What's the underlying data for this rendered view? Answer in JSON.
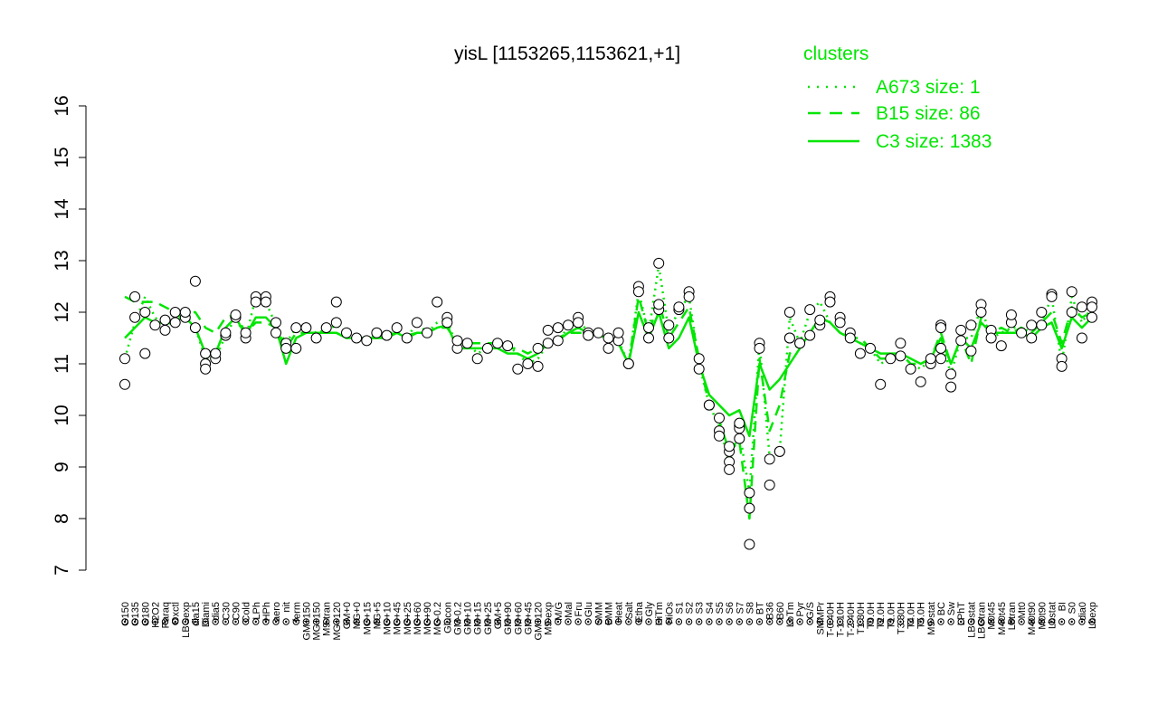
{
  "chart_data": {
    "type": "line",
    "title": "yisL [1153265,1153621,+1]",
    "xlabel": "",
    "ylabel": "",
    "ylim": [
      7,
      16
    ],
    "yticks": [
      7,
      8,
      9,
      10,
      11,
      12,
      13,
      14,
      15,
      16
    ],
    "grid": false,
    "legend_title": "clusters",
    "legend_position": "top-right",
    "legend": [
      {
        "label": "A673 size: 1",
        "style": "dotted"
      },
      {
        "label": "B15 size: 86",
        "style": "dashed"
      },
      {
        "label": "C3 size: 1383",
        "style": "solid"
      }
    ],
    "line_color": "#00e600",
    "tick_labels": [
      "G150",
      "G135",
      "G180",
      "H2O2",
      "Paraq",
      "Oxctl",
      "LBGexp",
      "dia15",
      "Diami",
      "dia5",
      "C30",
      "C90",
      "Cold",
      "LPh",
      "HPh",
      "aero",
      "nit",
      "ferm",
      "GM+150",
      "MG+150",
      "M9-tran",
      "MG+120",
      "GM+0",
      "MG+0",
      "MG+15",
      "MG+5",
      "MG+10",
      "MG+45",
      "MG+25",
      "MG+60",
      "MG+90",
      "MG-0.2",
      "Glucon",
      "GM-0.2",
      "GM+10",
      "GM+15",
      "GM+25",
      "GM+5",
      "GM+90",
      "GM+60",
      "GM+45",
      "GM+120",
      "M9-exp",
      "M/G",
      "Mal",
      "Fru",
      "Glu",
      "SMM",
      "BMM",
      "Heat",
      "Salt",
      "Etha",
      "Gly",
      "HiTm",
      "HiOs",
      "S1",
      "S2",
      "S3",
      "S4",
      "S5",
      "S6",
      "S7",
      "S8",
      "BT",
      "B36",
      "B60",
      "LoTm",
      "Pyr",
      "G/S",
      "SMMPr",
      "T-0.40H",
      "T-1.10H",
      "T-2.40H",
      "T1.30H",
      "T0.0H",
      "T2.0H",
      "T1.0H",
      "T3.30H",
      "T4.0H",
      "T5.0H",
      "M9-stat",
      "BC",
      "Sw",
      "LPhT",
      "LBGstat",
      "LBGtran",
      "M0t45",
      "M40t45",
      "Lbtran",
      "Mt0",
      "M40t90",
      "M0t90",
      "Lbstat",
      "BI",
      "S0",
      "dia0",
      "Lbexp"
    ],
    "series": [
      {
        "values": [
          11.1,
          11.8,
          12.3,
          11.9,
          11.7,
          11.9,
          11.95,
          11.7,
          11.1,
          11.1,
          11.55,
          11.9,
          11.5,
          12.3,
          12.2,
          11.75,
          11.4,
          11.7,
          11.7,
          11.6,
          11.65,
          11.75,
          11.6,
          11.5,
          11.5,
          11.55,
          11.6,
          11.6,
          11.5,
          11.8,
          11.6,
          11.8,
          11.85,
          11.3,
          11.4,
          11.2,
          11.3,
          11.4,
          11.35,
          11.2,
          11.0,
          11.1,
          11.4,
          11.45,
          11.7,
          11.8,
          11.65,
          11.6,
          11.5,
          11.45,
          11.0,
          12.4,
          11.6,
          12.9,
          11.6,
          12.05,
          12.3,
          11.0,
          10.2,
          9.8,
          9.1,
          9.7,
          8.5,
          11.4,
          9.2,
          9.3,
          11.9,
          11.4,
          12.0,
          12.2,
          11.8,
          11.6,
          11.5,
          11.4,
          11.3,
          11.0,
          11.1,
          11.2,
          11.0,
          10.9,
          11.1,
          11.5,
          10.8,
          11.5,
          11.5,
          12.1,
          11.5,
          11.6,
          11.7,
          11.7,
          11.6,
          11.8,
          12.3,
          11.0,
          12.3,
          11.8,
          12.1
        ]
      },
      {
        "values": [
          12.3,
          12.2,
          12.2,
          12.2,
          12.1,
          12.0,
          12.0,
          12.0,
          11.7,
          11.6,
          11.9,
          11.95,
          11.6,
          11.8,
          11.8,
          11.7,
          11.3,
          11.6,
          11.6,
          11.6,
          11.6,
          11.6,
          11.5,
          11.5,
          11.5,
          11.5,
          11.55,
          11.6,
          11.55,
          11.6,
          11.6,
          11.7,
          11.7,
          11.4,
          11.4,
          11.4,
          11.4,
          11.4,
          11.3,
          11.3,
          11.2,
          11.3,
          11.4,
          11.5,
          11.6,
          11.6,
          11.6,
          11.55,
          11.5,
          11.4,
          11.0,
          12.3,
          11.6,
          12.2,
          11.5,
          11.8,
          12.1,
          11.1,
          10.2,
          9.9,
          9.3,
          9.5,
          8.0,
          11.1,
          9.7,
          10.2,
          11.2,
          11.4,
          11.6,
          11.9,
          11.8,
          11.6,
          11.5,
          11.5,
          11.3,
          11.1,
          11.1,
          11.2,
          11.0,
          11.0,
          11.1,
          11.6,
          11.0,
          11.5,
          11.0,
          11.9,
          11.6,
          11.7,
          11.6,
          11.7,
          11.6,
          11.8,
          12.0,
          11.4,
          12.1,
          11.9,
          12.0
        ]
      },
      {
        "values": [
          11.5,
          11.7,
          11.9,
          11.8,
          11.8,
          11.85,
          11.9,
          11.7,
          11.2,
          11.2,
          11.7,
          11.9,
          11.55,
          11.9,
          11.9,
          11.7,
          11.0,
          11.5,
          11.6,
          11.6,
          11.6,
          11.6,
          11.5,
          11.5,
          11.5,
          11.5,
          11.5,
          11.6,
          11.5,
          11.6,
          11.6,
          11.7,
          11.75,
          11.3,
          11.3,
          11.3,
          11.3,
          11.3,
          11.2,
          11.2,
          11.1,
          11.2,
          11.4,
          11.45,
          11.6,
          11.7,
          11.6,
          11.55,
          11.5,
          11.4,
          11.0,
          12.0,
          11.5,
          12.0,
          11.3,
          11.5,
          11.9,
          11.0,
          10.4,
          10.2,
          10.0,
          10.1,
          9.6,
          11.0,
          10.5,
          10.7,
          11.0,
          11.3,
          11.6,
          11.9,
          11.8,
          11.6,
          11.5,
          11.4,
          11.3,
          11.2,
          11.2,
          11.2,
          11.1,
          11.0,
          11.1,
          11.5,
          11.0,
          11.5,
          11.3,
          11.8,
          11.6,
          11.6,
          11.6,
          11.6,
          11.5,
          11.7,
          11.8,
          11.3,
          11.9,
          11.7,
          11.9
        ]
      }
    ],
    "points": [
      {
        "i": 0,
        "y": 11.1
      },
      {
        "i": 0,
        "y": 10.6
      },
      {
        "i": 1,
        "y": 11.9
      },
      {
        "i": 1,
        "y": 12.3
      },
      {
        "i": 2,
        "y": 12.0
      },
      {
        "i": 2,
        "y": 11.2
      },
      {
        "i": 3,
        "y": 11.75
      },
      {
        "i": 4,
        "y": 11.65
      },
      {
        "i": 4,
        "y": 11.85
      },
      {
        "i": 5,
        "y": 12.0
      },
      {
        "i": 5,
        "y": 11.8
      },
      {
        "i": 6,
        "y": 11.9
      },
      {
        "i": 6,
        "y": 12.0
      },
      {
        "i": 7,
        "y": 12.6
      },
      {
        "i": 7,
        "y": 11.7
      },
      {
        "i": 8,
        "y": 11.2
      },
      {
        "i": 8,
        "y": 11.0
      },
      {
        "i": 8,
        "y": 10.9
      },
      {
        "i": 9,
        "y": 11.1
      },
      {
        "i": 9,
        "y": 11.2
      },
      {
        "i": 10,
        "y": 11.55
      },
      {
        "i": 10,
        "y": 11.6
      },
      {
        "i": 11,
        "y": 11.9
      },
      {
        "i": 11,
        "y": 11.95
      },
      {
        "i": 12,
        "y": 11.5
      },
      {
        "i": 12,
        "y": 11.6
      },
      {
        "i": 13,
        "y": 12.3
      },
      {
        "i": 13,
        "y": 12.2
      },
      {
        "i": 14,
        "y": 12.3
      },
      {
        "i": 14,
        "y": 12.2
      },
      {
        "i": 15,
        "y": 11.8
      },
      {
        "i": 15,
        "y": 11.6
      },
      {
        "i": 16,
        "y": 11.4
      },
      {
        "i": 16,
        "y": 11.3
      },
      {
        "i": 17,
        "y": 11.7
      },
      {
        "i": 17,
        "y": 11.3
      },
      {
        "i": 18,
        "y": 11.7
      },
      {
        "i": 19,
        "y": 11.5
      },
      {
        "i": 20,
        "y": 11.7
      },
      {
        "i": 21,
        "y": 12.2
      },
      {
        "i": 21,
        "y": 11.8
      },
      {
        "i": 22,
        "y": 11.6
      },
      {
        "i": 23,
        "y": 11.5
      },
      {
        "i": 24,
        "y": 11.45
      },
      {
        "i": 25,
        "y": 11.6
      },
      {
        "i": 26,
        "y": 11.55
      },
      {
        "i": 27,
        "y": 11.7
      },
      {
        "i": 28,
        "y": 11.5
      },
      {
        "i": 29,
        "y": 11.8
      },
      {
        "i": 30,
        "y": 11.6
      },
      {
        "i": 31,
        "y": 12.2
      },
      {
        "i": 32,
        "y": 11.9
      },
      {
        "i": 32,
        "y": 11.8
      },
      {
        "i": 33,
        "y": 11.3
      },
      {
        "i": 33,
        "y": 11.45
      },
      {
        "i": 34,
        "y": 11.4
      },
      {
        "i": 35,
        "y": 11.1
      },
      {
        "i": 36,
        "y": 11.3
      },
      {
        "i": 37,
        "y": 11.4
      },
      {
        "i": 38,
        "y": 11.35
      },
      {
        "i": 39,
        "y": 10.9
      },
      {
        "i": 40,
        "y": 11.0
      },
      {
        "i": 41,
        "y": 10.95
      },
      {
        "i": 41,
        "y": 11.3
      },
      {
        "i": 42,
        "y": 11.4
      },
      {
        "i": 42,
        "y": 11.65
      },
      {
        "i": 43,
        "y": 11.45
      },
      {
        "i": 43,
        "y": 11.7
      },
      {
        "i": 44,
        "y": 11.75
      },
      {
        "i": 45,
        "y": 11.9
      },
      {
        "i": 45,
        "y": 11.8
      },
      {
        "i": 46,
        "y": 11.6
      },
      {
        "i": 46,
        "y": 11.55
      },
      {
        "i": 47,
        "y": 11.6
      },
      {
        "i": 48,
        "y": 11.3
      },
      {
        "i": 48,
        "y": 11.5
      },
      {
        "i": 49,
        "y": 11.45
      },
      {
        "i": 49,
        "y": 11.6
      },
      {
        "i": 50,
        "y": 11.0
      },
      {
        "i": 50,
        "y": 11.0
      },
      {
        "i": 51,
        "y": 12.5
      },
      {
        "i": 51,
        "y": 12.4
      },
      {
        "i": 52,
        "y": 11.7
      },
      {
        "i": 52,
        "y": 11.5
      },
      {
        "i": 53,
        "y": 12.95
      },
      {
        "i": 53,
        "y": 12.05
      },
      {
        "i": 53,
        "y": 12.15
      },
      {
        "i": 54,
        "y": 11.75
      },
      {
        "i": 54,
        "y": 11.5
      },
      {
        "i": 55,
        "y": 12.05
      },
      {
        "i": 55,
        "y": 12.1
      },
      {
        "i": 56,
        "y": 12.4
      },
      {
        "i": 56,
        "y": 12.3
      },
      {
        "i": 57,
        "y": 11.1
      },
      {
        "i": 57,
        "y": 10.9
      },
      {
        "i": 58,
        "y": 10.2
      },
      {
        "i": 58,
        "y": 10.2
      },
      {
        "i": 59,
        "y": 9.95
      },
      {
        "i": 59,
        "y": 9.7
      },
      {
        "i": 59,
        "y": 9.6
      },
      {
        "i": 60,
        "y": 9.1
      },
      {
        "i": 60,
        "y": 8.95
      },
      {
        "i": 60,
        "y": 9.3
      },
      {
        "i": 60,
        "y": 9.4
      },
      {
        "i": 61,
        "y": 9.8
      },
      {
        "i": 61,
        "y": 9.55
      },
      {
        "i": 61,
        "y": 9.75
      },
      {
        "i": 61,
        "y": 9.85
      },
      {
        "i": 62,
        "y": 8.5
      },
      {
        "i": 62,
        "y": 8.2
      },
      {
        "i": 62,
        "y": 7.5
      },
      {
        "i": 63,
        "y": 11.4
      },
      {
        "i": 63,
        "y": 11.3
      },
      {
        "i": 64,
        "y": 9.15
      },
      {
        "i": 64,
        "y": 8.65
      },
      {
        "i": 65,
        "y": 9.3
      },
      {
        "i": 65,
        "y": 9.3
      },
      {
        "i": 66,
        "y": 12.0
      },
      {
        "i": 66,
        "y": 11.5
      },
      {
        "i": 66,
        "y": 11.5
      },
      {
        "i": 67,
        "y": 11.4
      },
      {
        "i": 67,
        "y": 11.4
      },
      {
        "i": 68,
        "y": 11.55
      },
      {
        "i": 68,
        "y": 12.05
      },
      {
        "i": 69,
        "y": 11.75
      },
      {
        "i": 69,
        "y": 11.85
      },
      {
        "i": 70,
        "y": 12.3
      },
      {
        "i": 70,
        "y": 12.2
      },
      {
        "i": 71,
        "y": 11.9
      },
      {
        "i": 71,
        "y": 11.8
      },
      {
        "i": 72,
        "y": 11.6
      },
      {
        "i": 72,
        "y": 11.5
      },
      {
        "i": 73,
        "y": 11.2
      },
      {
        "i": 74,
        "y": 11.3
      },
      {
        "i": 75,
        "y": 10.6
      },
      {
        "i": 76,
        "y": 11.1
      },
      {
        "i": 77,
        "y": 11.4
      },
      {
        "i": 77,
        "y": 11.15
      },
      {
        "i": 78,
        "y": 10.9
      },
      {
        "i": 79,
        "y": 10.65
      },
      {
        "i": 80,
        "y": 11.0
      },
      {
        "i": 80,
        "y": 11.1
      },
      {
        "i": 81,
        "y": 11.75
      },
      {
        "i": 81,
        "y": 11.7
      },
      {
        "i": 81,
        "y": 11.3
      },
      {
        "i": 81,
        "y": 11.1
      },
      {
        "i": 82,
        "y": 10.8
      },
      {
        "i": 82,
        "y": 10.55
      },
      {
        "i": 83,
        "y": 11.45
      },
      {
        "i": 83,
        "y": 11.65
      },
      {
        "i": 84,
        "y": 11.75
      },
      {
        "i": 84,
        "y": 11.25
      },
      {
        "i": 85,
        "y": 12.15
      },
      {
        "i": 85,
        "y": 12.0
      },
      {
        "i": 86,
        "y": 11.65
      },
      {
        "i": 86,
        "y": 11.5
      },
      {
        "i": 87,
        "y": 11.35
      },
      {
        "i": 88,
        "y": 11.8
      },
      {
        "i": 88,
        "y": 11.95
      },
      {
        "i": 89,
        "y": 11.6
      },
      {
        "i": 90,
        "y": 11.75
      },
      {
        "i": 90,
        "y": 11.5
      },
      {
        "i": 91,
        "y": 12.0
      },
      {
        "i": 91,
        "y": 11.75
      },
      {
        "i": 92,
        "y": 12.35
      },
      {
        "i": 92,
        "y": 12.3
      },
      {
        "i": 93,
        "y": 11.1
      },
      {
        "i": 93,
        "y": 10.95
      },
      {
        "i": 94,
        "y": 12.4
      },
      {
        "i": 94,
        "y": 12.0
      },
      {
        "i": 95,
        "y": 12.1
      },
      {
        "i": 95,
        "y": 11.5
      },
      {
        "i": 96,
        "y": 12.2
      },
      {
        "i": 96,
        "y": 12.1
      },
      {
        "i": 96,
        "y": 11.9
      }
    ]
  }
}
